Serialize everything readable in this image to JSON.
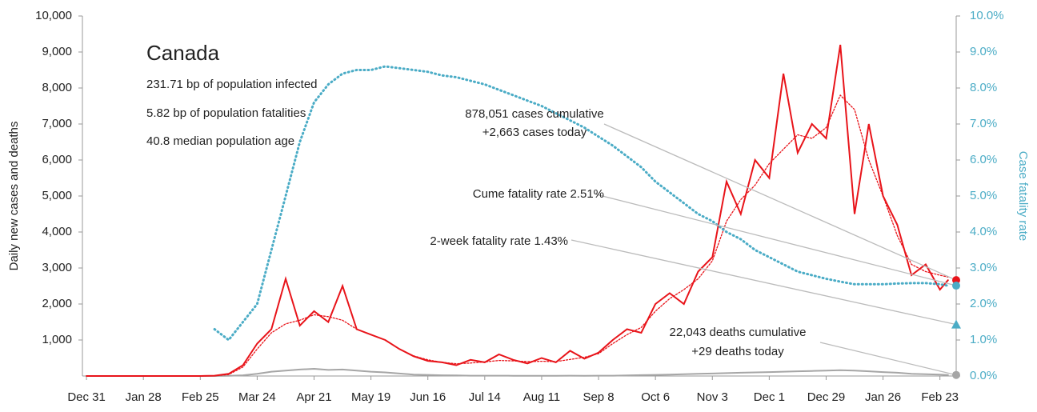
{
  "chart_data": {
    "type": "line",
    "title": "Canada",
    "info": [
      "231.71 bp of population infected",
      "5.82 bp of population fatalities",
      "40.8 median population age"
    ],
    "y_label": "Daily new cases and deaths",
    "y2_label": "Case fatality rate",
    "x": [
      0,
      7,
      14,
      21,
      28,
      35,
      42,
      49,
      56,
      63,
      70,
      77,
      84,
      91,
      98,
      105,
      112,
      119,
      126,
      133,
      140,
      147,
      154,
      161,
      168,
      175,
      182,
      189,
      196,
      203,
      210,
      217,
      224,
      231,
      238,
      245,
      252,
      259,
      266,
      273,
      280,
      287,
      294,
      301,
      308,
      315,
      322,
      329,
      336,
      343,
      350,
      357,
      364,
      371,
      378,
      385,
      392,
      399,
      406,
      413,
      420,
      424
    ],
    "xlim": [
      -2,
      428
    ],
    "xticks": [
      {
        "value": 0,
        "label": "Dec 31"
      },
      {
        "value": 28,
        "label": "Jan 28"
      },
      {
        "value": 56,
        "label": "Feb 25"
      },
      {
        "value": 84,
        "label": "Mar 24"
      },
      {
        "value": 112,
        "label": "Apr 21"
      },
      {
        "value": 140,
        "label": "May 19"
      },
      {
        "value": 168,
        "label": "Jun 16"
      },
      {
        "value": 196,
        "label": "Jul 14"
      },
      {
        "value": 224,
        "label": "Aug 11"
      },
      {
        "value": 252,
        "label": "Sep 8"
      },
      {
        "value": 280,
        "label": "Oct 6"
      },
      {
        "value": 308,
        "label": "Nov 3"
      },
      {
        "value": 336,
        "label": "Dec 1"
      },
      {
        "value": 364,
        "label": "Dec 29"
      },
      {
        "value": 392,
        "label": "Jan 26"
      },
      {
        "value": 420,
        "label": "Feb 23"
      }
    ],
    "ylim": [
      0,
      10000
    ],
    "yticks": [
      {
        "value": 1000,
        "label": "1,000"
      },
      {
        "value": 2000,
        "label": "2,000"
      },
      {
        "value": 3000,
        "label": "3,000"
      },
      {
        "value": 4000,
        "label": "4,000"
      },
      {
        "value": 5000,
        "label": "5,000"
      },
      {
        "value": 6000,
        "label": "6,000"
      },
      {
        "value": 7000,
        "label": "7,000"
      },
      {
        "value": 8000,
        "label": "8,000"
      },
      {
        "value": 9000,
        "label": "9,000"
      },
      {
        "value": 10000,
        "label": "10,000"
      }
    ],
    "y2lim": [
      0,
      10
    ],
    "y2ticks": [
      {
        "value": 0,
        "label": "0.0%"
      },
      {
        "value": 1,
        "label": "1.0%"
      },
      {
        "value": 2,
        "label": "2.0%"
      },
      {
        "value": 3,
        "label": "3.0%"
      },
      {
        "value": 4,
        "label": "4.0%"
      },
      {
        "value": 5,
        "label": "5.0%"
      },
      {
        "value": 6,
        "label": "6.0%"
      },
      {
        "value": 7,
        "label": "7.0%"
      },
      {
        "value": 8,
        "label": "8.0%"
      },
      {
        "value": 9,
        "label": "9.0%"
      },
      {
        "value": 10,
        "label": "10.0%"
      }
    ],
    "series": [
      {
        "color": "#e8141a",
        "style": "solid",
        "values": [
          0,
          0,
          0,
          0,
          0,
          0,
          0,
          0,
          0,
          10,
          60,
          300,
          900,
          1300,
          2700,
          1400,
          1800,
          1500,
          2500,
          1300,
          1150,
          1000,
          750,
          550,
          420,
          380,
          300,
          450,
          380,
          600,
          450,
          350,
          500,
          380,
          700,
          480,
          650,
          1000,
          1300,
          1200,
          2000,
          2300,
          2000,
          2900,
          3300,
          5400,
          4500,
          6000,
          5500,
          8400,
          6200,
          7000,
          6600,
          9200,
          4500,
          7000,
          5000,
          4200,
          2800,
          3100,
          2400,
          2663
        ]
      },
      {
        "color": "#e8141a",
        "style": "dotted",
        "values": [
          0,
          0,
          0,
          0,
          0,
          0,
          0,
          0,
          0,
          5,
          40,
          250,
          750,
          1200,
          1450,
          1550,
          1700,
          1650,
          1550,
          1300,
          1150,
          1000,
          750,
          560,
          450,
          380,
          340,
          360,
          390,
          430,
          420,
          400,
          410,
          400,
          460,
          520,
          620,
          900,
          1150,
          1350,
          1800,
          2150,
          2400,
          2700,
          3200,
          4300,
          4900,
          5300,
          5900,
          6300,
          6700,
          6600,
          6900,
          7800,
          7400,
          6000,
          5000,
          3900,
          3100,
          2900,
          2800,
          2750
        ]
      },
      {
        "color": "#a6a6a6",
        "style": "solid",
        "values": [
          0,
          0,
          0,
          0,
          0,
          0,
          0,
          0,
          0,
          0,
          5,
          20,
          60,
          120,
          150,
          180,
          200,
          170,
          180,
          150,
          120,
          100,
          70,
          40,
          30,
          20,
          15,
          10,
          10,
          8,
          6,
          5,
          5,
          6,
          8,
          7,
          8,
          10,
          15,
          25,
          30,
          40,
          50,
          60,
          70,
          80,
          90,
          100,
          110,
          120,
          130,
          140,
          150,
          160,
          150,
          130,
          110,
          90,
          60,
          50,
          40,
          29
        ]
      },
      {
        "color": "#4bacc6",
        "style": "dotted",
        "axis": "y2",
        "values": [
          null,
          null,
          null,
          null,
          null,
          null,
          null,
          null,
          null,
          1.3,
          1.0,
          1.5,
          2.0,
          3.5,
          5.0,
          6.5,
          7.6,
          8.1,
          8.4,
          8.5,
          8.5,
          8.6,
          8.55,
          8.5,
          8.45,
          8.35,
          8.3,
          8.2,
          8.1,
          7.95,
          7.8,
          7.65,
          7.5,
          7.3,
          7.1,
          6.9,
          6.65,
          6.4,
          6.1,
          5.8,
          5.4,
          5.1,
          4.8,
          4.5,
          4.3,
          4.0,
          3.8,
          3.5,
          3.3,
          3.1,
          2.9,
          2.8,
          2.7,
          2.62,
          2.55,
          2.55,
          2.55,
          2.57,
          2.58,
          2.58,
          2.55,
          2.51
        ]
      }
    ],
    "annotations": [
      {
        "text": [
          "878,051 cases cumulative",
          "+2,663 cases today"
        ],
        "value": 2663,
        "color": "#e8141a",
        "marker": "circle"
      },
      {
        "text": [
          "Cume fatality rate 2.51%"
        ],
        "value": 2.51,
        "axis": "y2",
        "color": "#4bacc6",
        "marker": "circle"
      },
      {
        "text": [
          "2-week fatality rate 1.43%"
        ],
        "value": 1.43,
        "axis": "y2",
        "color": "#4bacc6",
        "marker": "triangle"
      },
      {
        "text": [
          "22,043 deaths cumulative",
          "+29 deaths today"
        ],
        "value": 29,
        "color": "#a6a6a6",
        "marker": "circle"
      }
    ]
  }
}
